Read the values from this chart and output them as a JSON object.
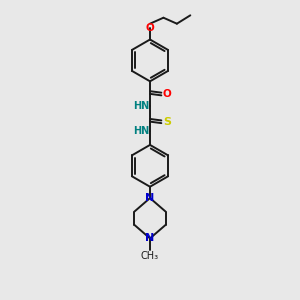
{
  "background_color": "#e8e8e8",
  "bond_color": "#1a1a1a",
  "atom_colors": {
    "O": "#ff0000",
    "N": "#0000cc",
    "NH": "#008080",
    "S": "#cccc00",
    "C": "#1a1a1a"
  },
  "figsize": [
    3.0,
    3.0
  ],
  "dpi": 100,
  "xlim": [
    0,
    6
  ],
  "ylim": [
    0,
    10
  ]
}
